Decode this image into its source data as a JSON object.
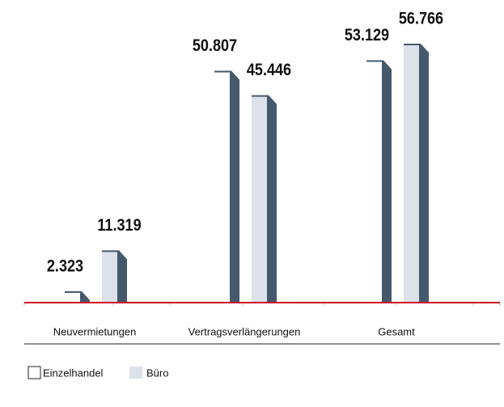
{
  "chart_data": {
    "type": "bar",
    "categories": [
      "Neuvermietungen",
      "Vertragsverlängerungen",
      "Gesamt"
    ],
    "series": [
      {
        "name": "Einzelhandel",
        "color": "#ffffff",
        "values": [
          2323,
          50807,
          53129
        ],
        "value_labels": [
          "2.323",
          "50.807",
          "53.129"
        ]
      },
      {
        "name": "Büro",
        "color": "#dde1ea",
        "values": [
          11319,
          45446,
          56766
        ],
        "value_labels": [
          "11.319",
          "45.446",
          "56.766"
        ]
      }
    ],
    "legend": "bottom-left"
  }
}
